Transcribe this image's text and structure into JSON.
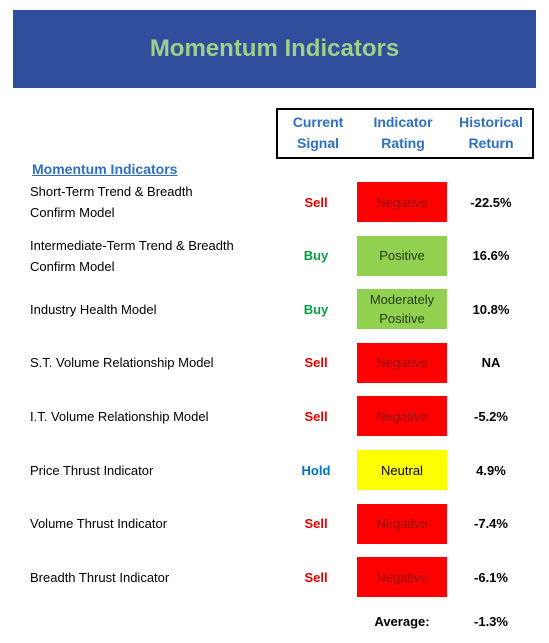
{
  "header": {
    "title": "Momentum Indicators"
  },
  "columns": [
    "Current Signal",
    "Indicator Rating",
    "Historical Return"
  ],
  "section": "Momentum Indicators",
  "rows": [
    {
      "name": "Short-Term Trend & Breadth Confirm Model",
      "signal": "Sell",
      "signal_color": "#e00000",
      "rating": "Negative",
      "rating_fill": "#ff0000",
      "rating_color": "#9c0006",
      "return": "-22.5%"
    },
    {
      "name": "Intermediate-Term Trend & Breadth Confirm Model",
      "signal": "Buy",
      "signal_color": "#00a040",
      "rating": "Positive",
      "rating_fill": "#92d050",
      "rating_color": "#1f3d0f",
      "return": "16.6%"
    },
    {
      "name": "Industry Health Model",
      "signal": "Buy",
      "signal_color": "#00a040",
      "rating": "Moderately Positive",
      "rating_fill": "#92d050",
      "rating_color": "#1f3d0f",
      "return": "10.8%"
    },
    {
      "name": "S.T. Volume Relationship Model",
      "signal": "Sell",
      "signal_color": "#e00000",
      "rating": "Negative",
      "rating_fill": "#ff0000",
      "rating_color": "#9c0006",
      "return": "NA"
    },
    {
      "name": "I.T. Volume Relationship Model",
      "signal": "Sell",
      "signal_color": "#e00000",
      "rating": "Negative",
      "rating_fill": "#ff0000",
      "rating_color": "#9c0006",
      "return": "-5.2%"
    },
    {
      "name": "Price Thrust Indicator",
      "signal": "Hold",
      "signal_color": "#0070c0",
      "rating": "Neutral",
      "rating_fill": "#ffff00",
      "rating_color": "#000000",
      "return": "4.9%"
    },
    {
      "name": "Volume Thrust Indicator",
      "signal": "Sell",
      "signal_color": "#e00000",
      "rating": "Negative",
      "rating_fill": "#ff0000",
      "rating_color": "#9c0006",
      "return": "-7.4%"
    },
    {
      "name": "Breadth Thrust Indicator",
      "signal": "Sell",
      "signal_color": "#e00000",
      "rating": "Negative",
      "rating_fill": "#ff0000",
      "rating_color": "#9c0006",
      "return": "-6.1%"
    }
  ],
  "average": {
    "label": "Average:",
    "value": "-1.3%"
  }
}
